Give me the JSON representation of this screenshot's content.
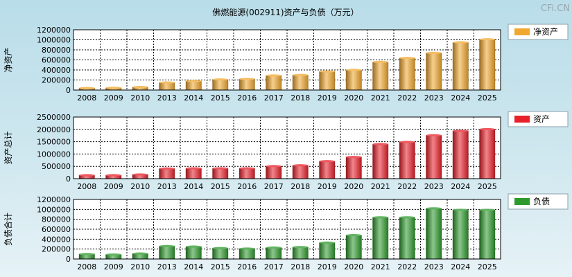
{
  "title": "佛燃能源(002911)资产与负债（万元）",
  "watermark": "CFi.CN",
  "chart_data": [
    {
      "type": "bar",
      "ylabel": "净资产",
      "legend": "净资产",
      "legend_position": "right",
      "color": "#f0a830",
      "categories": [
        "2008",
        "2009",
        "2010",
        "2013",
        "2014",
        "2015",
        "2016",
        "2017",
        "2018",
        "2019",
        "2020",
        "2021",
        "2022",
        "2023",
        "2024",
        "2025"
      ],
      "values": [
        40000,
        45000,
        60000,
        150000,
        180000,
        210000,
        220000,
        290000,
        300000,
        370000,
        400000,
        560000,
        640000,
        740000,
        950000,
        1010000
      ],
      "ylim": [
        0,
        1200000
      ],
      "yticks": [
        0,
        200000,
        400000,
        600000,
        800000,
        1000000,
        1200000
      ],
      "grid": true
    },
    {
      "type": "bar",
      "ylabel": "资产总计",
      "legend": "资产",
      "legend_position": "right",
      "color": "#e8202a",
      "categories": [
        "2008",
        "2009",
        "2010",
        "2013",
        "2014",
        "2015",
        "2016",
        "2017",
        "2018",
        "2019",
        "2020",
        "2021",
        "2022",
        "2023",
        "2024",
        "2025"
      ],
      "values": [
        140000,
        140000,
        170000,
        410000,
        420000,
        420000,
        420000,
        510000,
        540000,
        710000,
        880000,
        1400000,
        1490000,
        1760000,
        1940000,
        2010000
      ],
      "ylim": [
        0,
        2500000
      ],
      "yticks": [
        0,
        500000,
        1000000,
        1500000,
        2000000,
        2500000
      ],
      "grid": true
    },
    {
      "type": "bar",
      "ylabel": "负债合计",
      "legend": "负债",
      "legend_position": "right",
      "color": "#2e9a2e",
      "categories": [
        "2008",
        "2009",
        "2010",
        "2013",
        "2014",
        "2015",
        "2016",
        "2017",
        "2018",
        "2019",
        "2020",
        "2021",
        "2022",
        "2023",
        "2024",
        "2025"
      ],
      "values": [
        100000,
        90000,
        110000,
        260000,
        250000,
        220000,
        210000,
        230000,
        240000,
        330000,
        480000,
        840000,
        840000,
        1020000,
        990000,
        990000
      ],
      "ylim": [
        0,
        1200000
      ],
      "yticks": [
        0,
        200000,
        400000,
        600000,
        800000,
        1000000,
        1200000
      ],
      "grid": true
    }
  ]
}
